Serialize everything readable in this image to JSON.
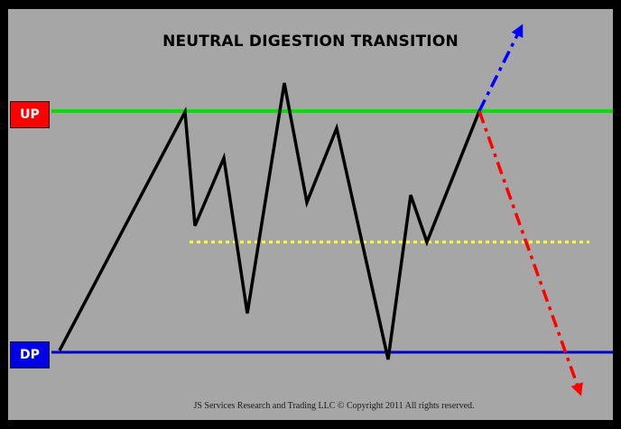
{
  "title": "NEUTRAL DIGESTION TRANSITION",
  "labels": {
    "upper": "UP",
    "lower": "DP"
  },
  "footer": "JS Services Research and Trading LLC © Copyright 2011 All rights reserved.",
  "colors": {
    "background": "#a6a6a6",
    "frame": "#000000",
    "up_line": "#00e000",
    "dp_line": "#0000cc",
    "price_path": "#000000",
    "midline": "#ffff33",
    "breakout_up": "#0000ff",
    "breakout_down": "#ff0000"
  }
}
